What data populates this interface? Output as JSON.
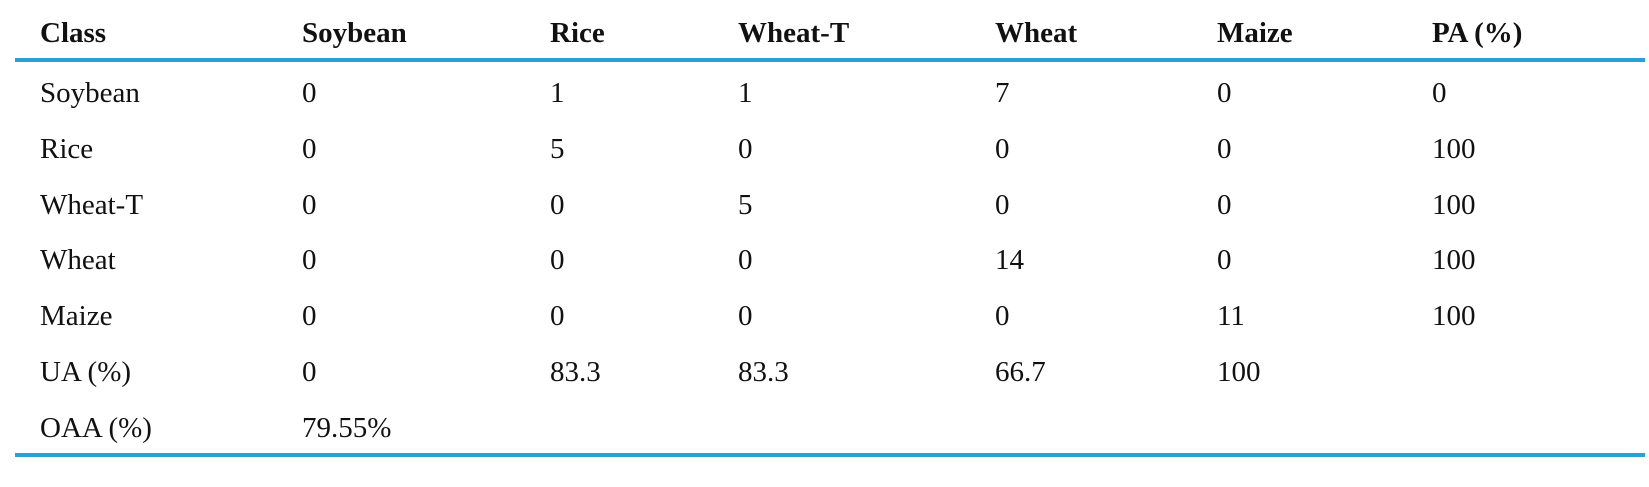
{
  "table": {
    "header": [
      "Class",
      "Soybean",
      "Rice",
      "Wheat-T",
      "Wheat",
      "Maize",
      "PA (%)"
    ],
    "rows": [
      [
        "Soybean",
        "0",
        "1",
        "1",
        "7",
        "0",
        "0"
      ],
      [
        "Rice",
        "0",
        "5",
        "0",
        "0",
        "0",
        "100"
      ],
      [
        "Wheat-T",
        "0",
        "0",
        "5",
        "0",
        "0",
        "100"
      ],
      [
        "Wheat",
        "0",
        "0",
        "0",
        "14",
        "0",
        "100"
      ],
      [
        "Maize",
        "0",
        "0",
        "0",
        "0",
        "11",
        "100"
      ],
      [
        "UA (%)",
        "0",
        "83.3",
        "83.3",
        "66.7",
        "100"
      ],
      [
        "OAA (%)",
        "79.55%"
      ]
    ]
  }
}
